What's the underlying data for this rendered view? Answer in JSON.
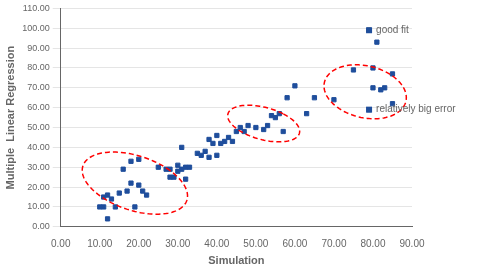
{
  "chart_data": {
    "type": "scatter",
    "x": [
      10,
      11,
      11,
      12,
      12,
      13,
      14,
      15,
      16,
      17,
      18,
      18,
      19,
      20,
      20,
      21,
      22,
      25,
      27,
      28,
      28,
      29,
      30,
      30,
      31,
      31,
      32,
      32,
      33,
      35,
      36,
      37,
      38,
      38,
      39,
      40,
      40,
      41,
      42,
      43,
      44,
      45,
      46,
      47,
      48,
      50,
      52,
      53,
      54,
      55,
      56,
      57,
      58,
      60,
      63,
      65,
      70,
      75,
      80,
      80,
      81,
      82,
      83,
      85,
      85
    ],
    "values": [
      10,
      10,
      15,
      4,
      16,
      14,
      10,
      17,
      29,
      18,
      22,
      33,
      10,
      21,
      34,
      18,
      16,
      30,
      29,
      25,
      29,
      25,
      28,
      31,
      29,
      40,
      24,
      30,
      30,
      37,
      36,
      38,
      35,
      44,
      42,
      36,
      46,
      42,
      43,
      45,
      43,
      48,
      50,
      48,
      51,
      50,
      49,
      51,
      56,
      55,
      57,
      48,
      65,
      71,
      57,
      65,
      64,
      79,
      70,
      80,
      93,
      69,
      70,
      62,
      77
    ],
    "color": "#1f4e9c",
    "marker": "square",
    "xlabel": "Simulation",
    "ylabel": "Multiple  Linear Regression",
    "xlim": [
      0,
      90
    ],
    "ylim": [
      0,
      110
    ],
    "xticks": [
      {
        "value": 0,
        "label": "0.00"
      },
      {
        "value": 10,
        "label": "10.00"
      },
      {
        "value": 20,
        "label": "20.00"
      },
      {
        "value": 30,
        "label": "30.00"
      },
      {
        "value": 40,
        "label": "40.00"
      },
      {
        "value": 50,
        "label": "50.00"
      },
      {
        "value": 60,
        "label": "60.00"
      },
      {
        "value": 70,
        "label": "70.00"
      },
      {
        "value": 80,
        "label": "80.00"
      },
      {
        "value": 90,
        "label": "90.00"
      }
    ],
    "yticks": [
      {
        "value": 0,
        "label": "0.00"
      },
      {
        "value": 10,
        "label": "10.00"
      },
      {
        "value": 20,
        "label": "20.00"
      },
      {
        "value": 30,
        "label": "30.00"
      },
      {
        "value": 40,
        "label": "40.00"
      },
      {
        "value": 50,
        "label": "50.00"
      },
      {
        "value": 60,
        "label": "60.00"
      },
      {
        "value": 70,
        "label": "70.00"
      },
      {
        "value": 80,
        "label": "80.00"
      },
      {
        "value": 90,
        "label": "90.00"
      },
      {
        "value": 100,
        "label": "100.00"
      },
      {
        "value": 110,
        "label": "110.00"
      }
    ],
    "grid": "y",
    "ellipses": [
      {
        "x": 19,
        "y": 22,
        "width": 22,
        "height": 35,
        "angle": 35,
        "color": "red",
        "line_style": "dashed"
      },
      {
        "x": 52,
        "y": 52,
        "width": 14,
        "height": 22,
        "angle": 45,
        "color": "red",
        "line_style": "dashed"
      },
      {
        "x": 78,
        "y": 68,
        "width": 20,
        "height": 28,
        "angle": 20,
        "color": "red",
        "line_style": "dashed"
      }
    ],
    "annotations": [
      {
        "text": "good fit",
        "x": 79,
        "y": 99,
        "marker": "square",
        "color": "#1f4e9c"
      },
      {
        "text": "relatively big error",
        "x": 79,
        "y": 59,
        "marker": "square",
        "color": "#1f4e9c"
      }
    ]
  }
}
